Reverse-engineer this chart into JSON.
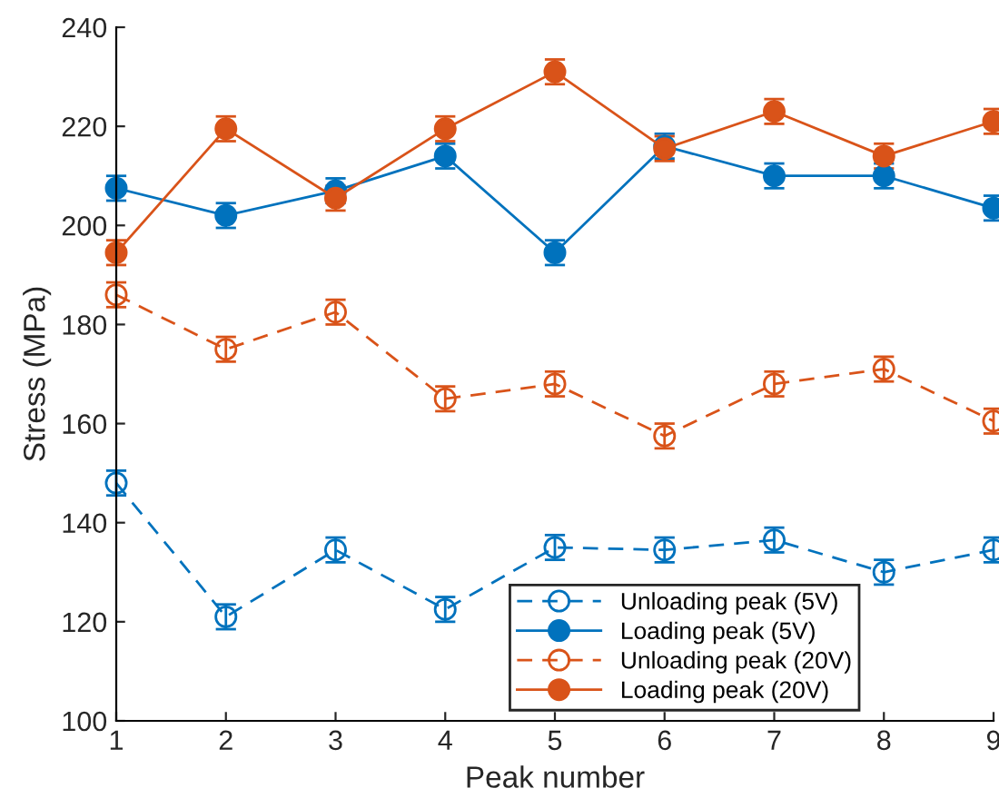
{
  "chart_data": {
    "type": "line",
    "xlabel": "Peak number",
    "ylabel": "Stress (MPa)",
    "x": [
      1,
      2,
      3,
      4,
      5,
      6,
      7,
      8,
      9
    ],
    "xlim": [
      1,
      9
    ],
    "xticks": [
      1,
      2,
      3,
      4,
      5,
      6,
      7,
      8,
      9
    ],
    "ylim": [
      100,
      240
    ],
    "yticks": [
      100,
      120,
      140,
      160,
      180,
      200,
      220,
      240
    ],
    "grid": false,
    "legend": "bottom right",
    "series": [
      {
        "name": "Unloading peak (5V)",
        "color": "#0072bd",
        "marker": "circle",
        "line_style": "dashed",
        "values": [
          148,
          121,
          134.5,
          122.5,
          135,
          134.5,
          136.5,
          130,
          134.5
        ],
        "errors": [
          2.5,
          2.5,
          2.5,
          2.5,
          2.5,
          2.5,
          2.5,
          2.5,
          2.5
        ]
      },
      {
        "name": "Loading peak (5V)",
        "color": "#0072bd",
        "marker": "circle",
        "line_style": "solid",
        "values": [
          207.5,
          202,
          207,
          214,
          194.5,
          216,
          210,
          210,
          203.5
        ],
        "errors": [
          2.5,
          2.5,
          2.5,
          2.5,
          2.5,
          2.5,
          2.5,
          2.5,
          2.5
        ]
      },
      {
        "name": "Unloading peak (20V)",
        "color": "#d95319",
        "marker": "circle",
        "line_style": "dashed",
        "values": [
          186,
          175,
          182.5,
          165,
          168,
          157.5,
          168,
          171,
          160.5
        ],
        "errors": [
          2.5,
          2.5,
          2.5,
          2.5,
          2.5,
          2.5,
          2.5,
          2.5,
          2.5
        ]
      },
      {
        "name": "Loading peak (20V)",
        "color": "#d95319",
        "marker": "circle",
        "line_style": "solid",
        "values": [
          194.5,
          219.5,
          205.5,
          219.5,
          231,
          215.5,
          223,
          214,
          221
        ],
        "errors": [
          2.5,
          2.5,
          2.5,
          2.5,
          2.5,
          2.5,
          2.5,
          2.5,
          2.5
        ]
      }
    ]
  }
}
